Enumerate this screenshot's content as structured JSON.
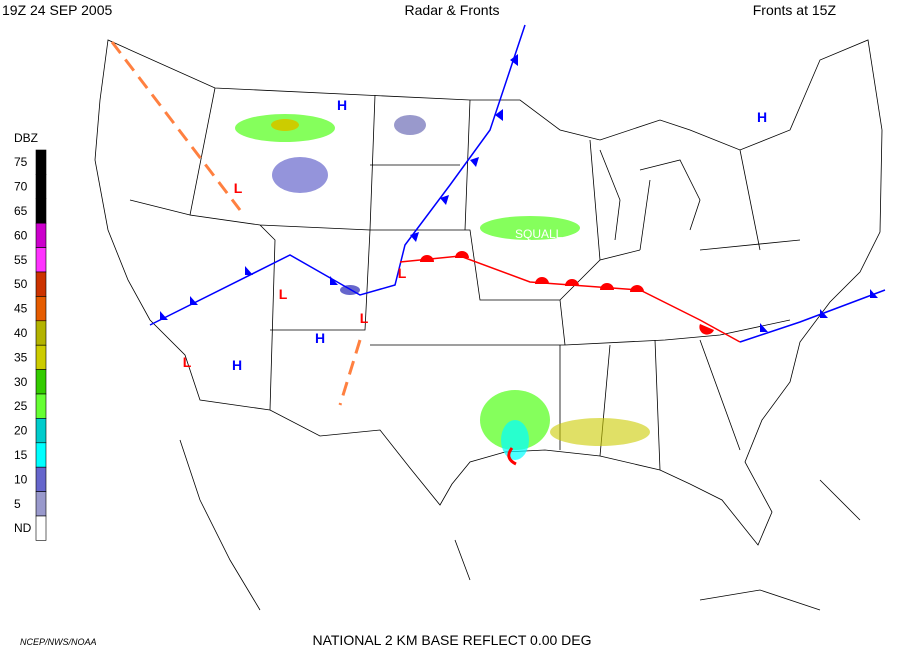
{
  "header": {
    "left": "19Z  24 SEP  2005",
    "center": "Radar & Fronts",
    "right": "Fronts at 15Z"
  },
  "legend": {
    "title": "DBZ",
    "levels": [
      {
        "label": "75",
        "color": "#000000"
      },
      {
        "label": "70",
        "color": "#000000"
      },
      {
        "label": "65",
        "color": "#000000"
      },
      {
        "label": "60",
        "color": "#cc00cc"
      },
      {
        "label": "55",
        "color": "#ff33ff"
      },
      {
        "label": "50",
        "color": "#cc3300"
      },
      {
        "label": "45",
        "color": "#e65c00"
      },
      {
        "label": "40",
        "color": "#b3b300"
      },
      {
        "label": "35",
        "color": "#cccc00"
      },
      {
        "label": "30",
        "color": "#33cc00"
      },
      {
        "label": "25",
        "color": "#66ff33"
      },
      {
        "label": "20",
        "color": "#00cccc"
      },
      {
        "label": "15",
        "color": "#00ffff"
      },
      {
        "label": "10",
        "color": "#6666cc"
      },
      {
        "label": "5",
        "color": "#9999cc"
      },
      {
        "label": "ND",
        "color": "#ffffff"
      }
    ]
  },
  "pressure_centers": [
    {
      "label": "H",
      "color": "#0000ff"
    },
    {
      "label": "H",
      "color": "#0000ff"
    },
    {
      "label": "H",
      "color": "#0000ff"
    },
    {
      "label": "H",
      "color": "#0000ff"
    },
    {
      "label": "L",
      "color": "#ff0000"
    },
    {
      "label": "L",
      "color": "#ff0000"
    },
    {
      "label": "L",
      "color": "#ff0000"
    },
    {
      "label": "L",
      "color": "#ff0000"
    },
    {
      "label": "L",
      "color": "#ff0000"
    }
  ],
  "annotations": {
    "squall": "SQUALL"
  },
  "footer": {
    "credit": "NCEP/NWS/NOAA",
    "product": "NATIONAL 2 KM BASE REFLECT 0.00 DEG"
  }
}
